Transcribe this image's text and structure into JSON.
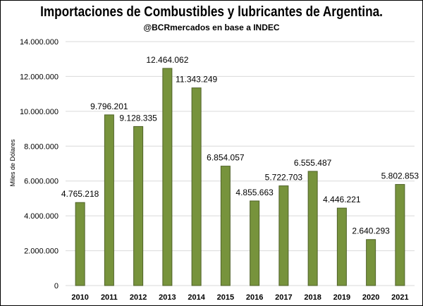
{
  "chart_data": {
    "type": "bar",
    "title": "Importaciones de Combustibles y lubricantes de Argentina.",
    "subtitle": "@BCRmercados en base a INDEC",
    "ylabel": "Miles de Dólares",
    "xlabel": "",
    "ylim": [
      0,
      14000000
    ],
    "y_ticks": [
      0,
      2000000,
      4000000,
      6000000,
      8000000,
      10000000,
      12000000,
      14000000
    ],
    "y_tick_labels": [
      "0",
      "2.000.000",
      "4.000.000",
      "6.000.000",
      "8.000.000",
      "10.000.000",
      "12.000.000",
      "14.000.000"
    ],
    "categories": [
      "2010",
      "2011",
      "2012",
      "2013",
      "2014",
      "2015",
      "2016",
      "2017",
      "2018",
      "2019",
      "2020",
      "2021"
    ],
    "values": [
      4765218,
      9796201,
      9128335,
      12464062,
      11343249,
      6854057,
      4855663,
      5722703,
      6555487,
      4446221,
      2640293,
      5802853
    ],
    "value_labels": [
      "4.765.218",
      "9.796.201",
      "9.128.335",
      "12.464.062",
      "11.343.249",
      "6.854.057",
      "4.855.663",
      "5.722.703",
      "6.555.487",
      "4.446.221",
      "2.640.293",
      "5.802.853"
    ],
    "grid": true,
    "legend": "none",
    "colors": {
      "bar_fill": "#77933c",
      "bar_stroke": "#4f6228",
      "grid": "#d9d9d9"
    }
  }
}
